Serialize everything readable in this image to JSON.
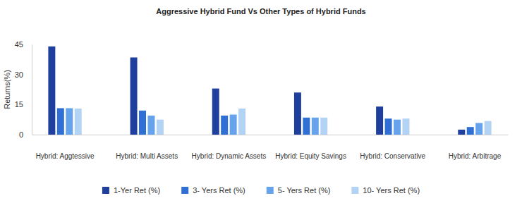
{
  "chart_data": {
    "type": "bar",
    "title": "Aggressive Hybrid Fund Vs Other Types of Hybrid Funds",
    "y_label": "Returns(%)",
    "categories": [
      "Hybrid: Aggtessive",
      "Hybrid: Multi Assets",
      "Hybrid: Dynamic Assets",
      "Hybrid: Equity Savings",
      "Hybrid: Conservative",
      "Hybrid: Arbitrage"
    ],
    "series": [
      {
        "name": "1-Yer Ret (%)",
        "color": "#1f3f9e",
        "values": [
          44,
          38.5,
          23,
          21,
          14,
          2.5
        ]
      },
      {
        "name": "3- Yers Ret (%)",
        "color": "#2f6fd6",
        "values": [
          13.2,
          12,
          9.5,
          8.5,
          8,
          3.8
        ]
      },
      {
        "name": "5- Yers Ret (%)",
        "color": "#67a3ec",
        "values": [
          13.2,
          9.5,
          10,
          8.5,
          7.5,
          5.8
        ]
      },
      {
        "name": "10- Yers Ret (%)",
        "color": "#b2d3f3",
        "values": [
          13,
          7.5,
          13,
          8.5,
          8,
          6.8
        ]
      }
    ],
    "ylim": [
      0,
      45
    ],
    "yticks": [
      0,
      15,
      30,
      45
    ],
    "grid": false,
    "legend": "bottom"
  }
}
